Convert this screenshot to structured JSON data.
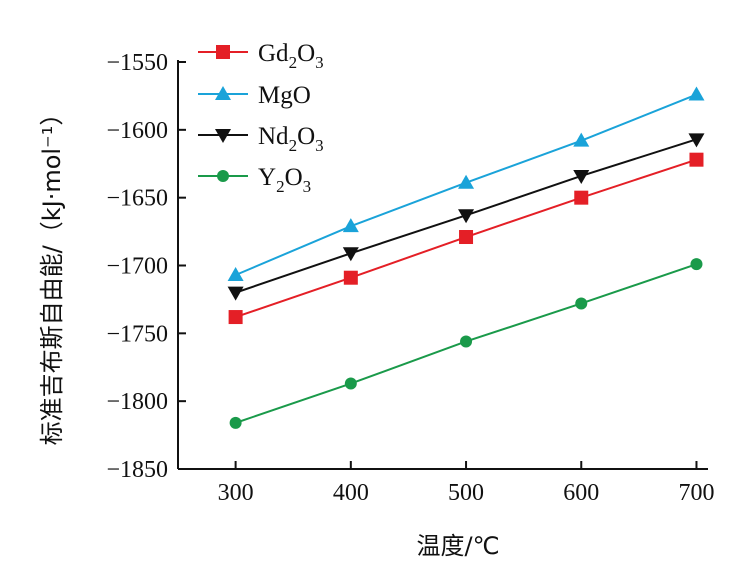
{
  "chart_data": {
    "type": "line",
    "xlabel": "温度/℃",
    "ylabel": "标准吉布斯自由能/（kJ·mol⁻¹）",
    "xlim": [
      250,
      710
    ],
    "ylim": [
      -1850,
      -1550
    ],
    "x_ticks": [
      300,
      400,
      500,
      600,
      700
    ],
    "y_ticks": [
      -1550,
      -1600,
      -1650,
      -1700,
      -1750,
      -1800,
      -1850
    ],
    "x_tick_labels": [
      "300",
      "400",
      "500",
      "600",
      "700"
    ],
    "y_tick_labels": [
      "−1550",
      "−1600",
      "−1650",
      "−1700",
      "−1750",
      "−1800",
      "−1850"
    ],
    "grid": false,
    "legend_position": "top-left",
    "x": [
      300,
      400,
      500,
      600,
      700
    ],
    "series": [
      {
        "name": "Gd2O3",
        "label_base": "Gd",
        "label_sub1": "2",
        "label_mid": "O",
        "label_sub2": "3",
        "marker": "square",
        "color": "#e41f26",
        "values": [
          -1738,
          -1709,
          -1679,
          -1650,
          -1622
        ]
      },
      {
        "name": "MgO",
        "label_base": "MgO",
        "label_sub1": "",
        "label_mid": "",
        "label_sub2": "",
        "marker": "triangle-up",
        "color": "#1aa3d9",
        "values": [
          -1707,
          -1671,
          -1639,
          -1608,
          -1574
        ]
      },
      {
        "name": "Nd2O3",
        "label_base": "Nd",
        "label_sub1": "2",
        "label_mid": "O",
        "label_sub2": "3",
        "marker": "triangle-down",
        "color": "#111111",
        "values": [
          -1720,
          -1691,
          -1663,
          -1634,
          -1607
        ]
      },
      {
        "name": "Y2O3",
        "label_base": "Y",
        "label_sub1": "2",
        "label_mid": "O",
        "label_sub2": "3",
        "marker": "circle",
        "color": "#1a9a4a",
        "values": [
          -1816,
          -1787,
          -1756,
          -1728,
          -1699
        ]
      }
    ]
  }
}
